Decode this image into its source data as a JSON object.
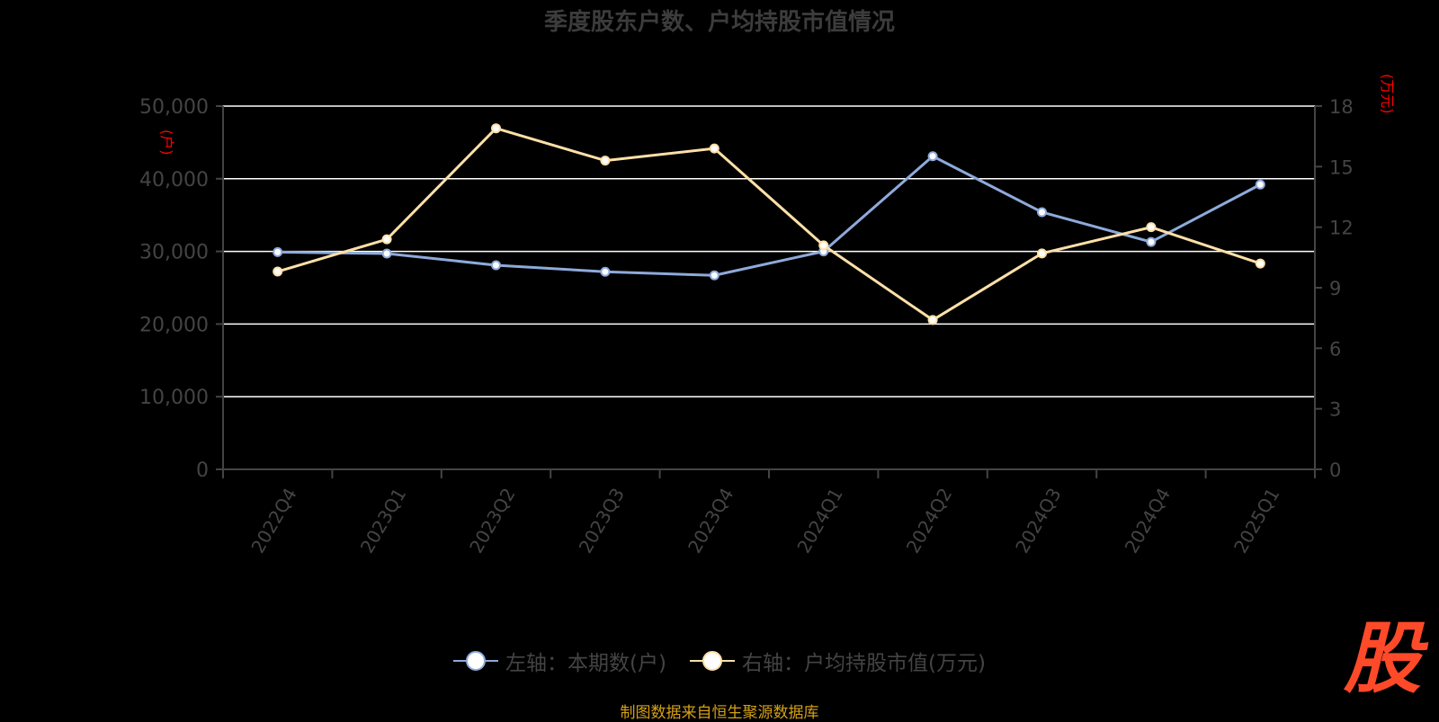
{
  "chart_data": {
    "type": "line",
    "title": "季度股东户数、户均持股市值情况",
    "categories": [
      "2022Q4",
      "2023Q1",
      "2023Q2",
      "2023Q3",
      "2023Q4",
      "2024Q1",
      "2024Q2",
      "2024Q3",
      "2024Q4",
      "2025Q1"
    ],
    "series": [
      {
        "name": "左轴：本期数(户)",
        "axis": "left",
        "color": "#8eaadb",
        "values": [
          29900,
          29700,
          28100,
          27200,
          26700,
          30000,
          43100,
          35400,
          31300,
          39200
        ]
      },
      {
        "name": "右轴：户均持股市值(万元)",
        "axis": "right",
        "color": "#ffe0a8",
        "values": [
          9.8,
          11.4,
          16.9,
          15.3,
          15.9,
          11.1,
          7.4,
          10.7,
          12.0,
          10.2
        ]
      }
    ],
    "y_left": {
      "unit": "(户)",
      "ylim": [
        0,
        50000
      ],
      "ticks": [
        "0",
        "10,000",
        "20,000",
        "30,000",
        "40,000",
        "50,000"
      ]
    },
    "y_right": {
      "unit": "(万元)",
      "ylim": [
        0,
        18
      ],
      "ticks": [
        "0",
        "3",
        "6",
        "9",
        "12",
        "15",
        "18"
      ]
    },
    "grid": true,
    "legend_position": "bottom"
  },
  "source_note": "制图数据来自恒生聚源数据库",
  "brand_logo": "股",
  "colors": {
    "background": "#000000",
    "grid": "#ffffff",
    "axis": "#444444",
    "unit_label": "#ff0000",
    "source_note": "#d4a017",
    "logo": "#ff4a2a"
  }
}
